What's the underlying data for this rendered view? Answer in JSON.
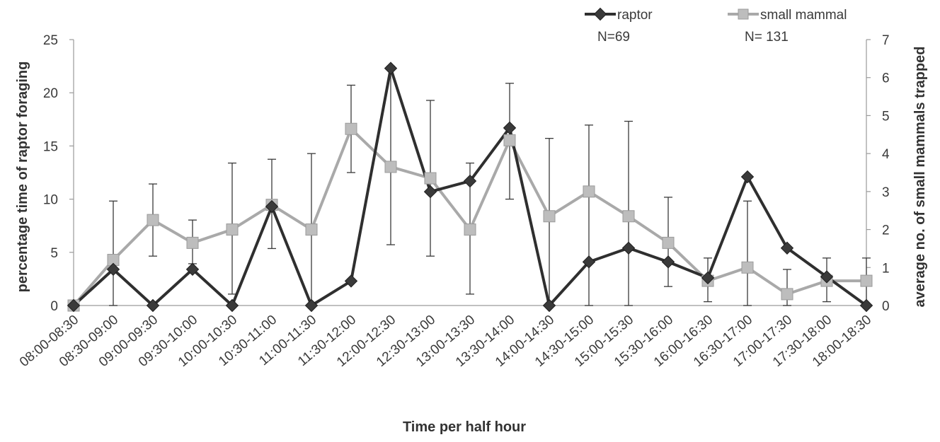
{
  "chart_data": {
    "type": "line",
    "title": "",
    "xlabel": "Time per half hour",
    "ylabel": "percentage time of raptor foraging",
    "y2label": "average no. of small mammals trapped",
    "ylim": [
      0,
      25
    ],
    "y2lim": [
      0,
      7
    ],
    "yticks": [
      "0",
      "5",
      "10",
      "15",
      "20",
      "25"
    ],
    "y2ticks": [
      "0",
      "1",
      "2",
      "3",
      "4",
      "5",
      "6",
      "7"
    ],
    "grid": false,
    "legend_position": "top-right",
    "categories": [
      "08:00-08:30",
      "08:30-09:00",
      "09:00-09:30",
      "09:30-10:00",
      "10:00-10:30",
      "10:30-11:00",
      "11:00-11:30",
      "11:30-12:00",
      "12:00-12:30",
      "12:30-13:00",
      "13:00-13:30",
      "13:30-14:00",
      "14:00-14:30",
      "14:30-15:00",
      "15:00-15:30",
      "15:30-16:00",
      "16:00-16:30",
      "16:30-17:00",
      "17:00-17:30",
      "17:30-18:00",
      "18:00-18:30"
    ],
    "series": [
      {
        "name": "raptor",
        "note": "N=69",
        "axis": "left",
        "color": "#2f2f2f",
        "marker": "diamond",
        "values": [
          0,
          3.4,
          0,
          3.4,
          0,
          9.3,
          0,
          2.3,
          22.3,
          10.7,
          11.7,
          16.7,
          0,
          4.1,
          5.4,
          4.1,
          2.6,
          12.1,
          5.4,
          2.7,
          0
        ]
      },
      {
        "name": "small mammal",
        "note": "N= 131",
        "axis": "right",
        "color": "#a9a9a9",
        "marker": "square",
        "values": [
          0,
          1.2,
          2.25,
          1.65,
          2.0,
          2.65,
          2.0,
          4.65,
          3.65,
          3.35,
          2.0,
          4.35,
          2.35,
          3.0,
          2.35,
          1.65,
          0.65,
          1.0,
          0.3,
          0.65,
          0.65
        ],
        "error_low": [
          0,
          0,
          1.3,
          1.1,
          0.3,
          1.5,
          0,
          3.5,
          1.6,
          1.3,
          0.3,
          2.8,
          0,
          0,
          0,
          0.5,
          0.1,
          0,
          0,
          0.1,
          0
        ],
        "error_high": [
          0,
          2.75,
          3.2,
          2.25,
          3.75,
          3.85,
          4.0,
          5.8,
          6.3,
          5.4,
          3.75,
          5.85,
          4.4,
          4.75,
          4.85,
          2.85,
          1.25,
          2.75,
          0.95,
          1.25,
          1.25
        ]
      }
    ]
  }
}
